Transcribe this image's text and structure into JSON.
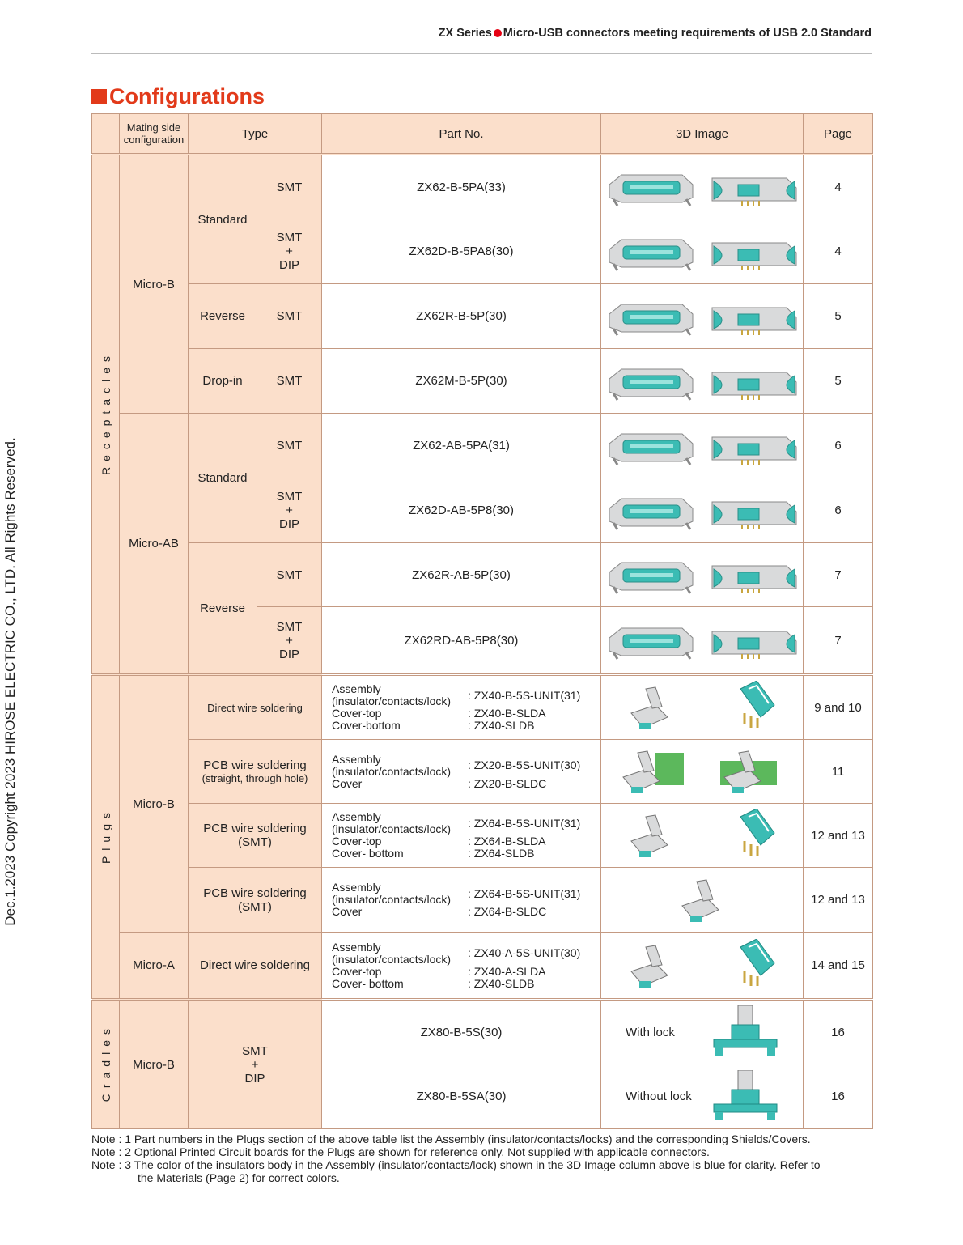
{
  "header": {
    "series": "ZX Series",
    "title": "Micro-USB connectors meeting requirements of USB 2.0 Standard"
  },
  "section_title": "Configurations",
  "side_text": "Dec.1.2023 Copyright 2023 HIROSE ELECTRIC CO., LTD. All Rights Reserved.",
  "columns": {
    "mating": "Mating side configuration",
    "type": "Type",
    "part": "Part No.",
    "image": "3D Image",
    "page": "Page"
  },
  "groups": {
    "receptacles": "Receptacles",
    "plugs": "Plugs",
    "cradles": "Cradles"
  },
  "labels": {
    "micro_b": "Micro-B",
    "micro_ab": "Micro-AB",
    "micro_a": "Micro-A",
    "standard": "Standard",
    "reverse": "Reverse",
    "dropin": "Drop-in",
    "smt": "SMT",
    "plus": "+",
    "dip": "DIP",
    "direct": "Direct wire soldering",
    "pcb_hole_1": "PCB wire soldering",
    "pcb_hole_2": "(straight, through hole)",
    "pcb_smt_1": "PCB wire soldering",
    "pcb_smt_2": "(SMT)",
    "assembly_1": "Assembly",
    "assembly_2": "(insulator/contacts/lock)",
    "cover_top": "Cover-top",
    "cover_bottom": "Cover-bottom",
    "cover_bottom2": "Cover- bottom",
    "cover": "Cover",
    "with_lock": "With lock",
    "without_lock": "Without lock"
  },
  "receptacle_rows": [
    {
      "part": "ZX62-B-5PA(33)",
      "page": "4"
    },
    {
      "part": "ZX62D-B-5PA8(30)",
      "page": "4"
    },
    {
      "part": "ZX62R-B-5P(30)",
      "page": "5"
    },
    {
      "part": "ZX62M-B-5P(30)",
      "page": "5"
    },
    {
      "part": "ZX62-AB-5PA(31)",
      "page": "6"
    },
    {
      "part": "ZX62D-AB-5P8(30)",
      "page": "6"
    },
    {
      "part": "ZX62R-AB-5P(30)",
      "page": "7"
    },
    {
      "part": "ZX62RD-AB-5P8(30)",
      "page": "7"
    }
  ],
  "plug_rows": [
    {
      "assembly": ": ZX40-B-5S-UNIT(31)",
      "top": ": ZX40-B-SLDA",
      "bottom": ": ZX40-SLDB",
      "page": "9 and 10"
    },
    {
      "assembly": ": ZX20-B-5S-UNIT(30)",
      "cover": ": ZX20-B-SLDC",
      "page": "11"
    },
    {
      "assembly": ": ZX64-B-5S-UNIT(31)",
      "top": ": ZX64-B-SLDA",
      "bottom": ": ZX64-SLDB",
      "page": "12 and 13"
    },
    {
      "assembly": ": ZX64-B-5S-UNIT(31)",
      "cover": ": ZX64-B-SLDC",
      "page": "12 and 13"
    },
    {
      "assembly": ": ZX40-A-5S-UNIT(30)",
      "top": ": ZX40-A-SLDA",
      "bottom": ": ZX40-SLDB",
      "page": "14 and 15"
    }
  ],
  "cradle_rows": [
    {
      "part": "ZX80-B-5S(30)",
      "page": "16"
    },
    {
      "part": "ZX80-B-5SA(30)",
      "page": "16"
    }
  ],
  "notes": [
    "Note : 1 Part numbers in the Plugs section of the above table list the Assembly (insulator/contacts/locks) and the corresponding Shields/Covers.",
    "Note : 2 Optional Printed Circuit boards for the Plugs are shown for reference only. Not supplied with applicable connectors.",
    "Note : 3 The color of the insulators body in the Assembly (insulator/contacts/lock) shown in the 3D Image column above is blue for clarity. Refer to",
    "the Materials (Page 2) for correct colors."
  ],
  "colors": {
    "accent": "#e23a1a",
    "header_dot": "#e60012",
    "cell_fill": "#fbdfcb",
    "connector_teal": "#3bbcb4"
  },
  "icons": [
    "receptacle-image",
    "plug-image",
    "cradle-image"
  ]
}
